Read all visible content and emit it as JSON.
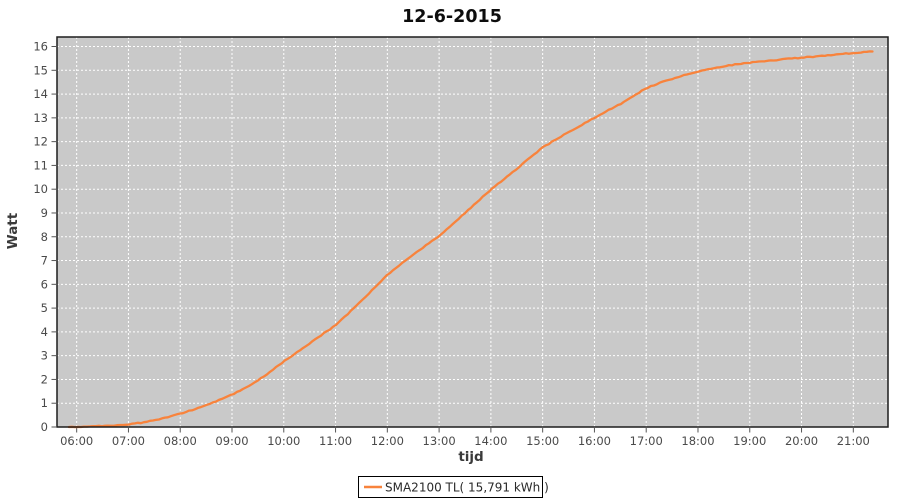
{
  "chart_data": {
    "type": "line",
    "title": "12-6-2015",
    "xlabel": "tijd",
    "ylabel": "Watt",
    "x_tick_labels": [
      "06:00",
      "07:00",
      "08:00",
      "09:00",
      "10:00",
      "11:00",
      "12:00",
      "13:00",
      "14:00",
      "15:00",
      "16:00",
      "17:00",
      "18:00",
      "19:00",
      "20:00",
      "21:00"
    ],
    "x_tick_hours": [
      6,
      7,
      8,
      9,
      10,
      11,
      12,
      13,
      14,
      15,
      16,
      17,
      18,
      19,
      20,
      21
    ],
    "xlim_hours": [
      5.62,
      21.67
    ],
    "y_ticks": [
      0,
      1,
      2,
      3,
      4,
      5,
      6,
      7,
      8,
      9,
      10,
      11,
      12,
      13,
      14,
      15,
      16
    ],
    "ylim": [
      0,
      16.4
    ],
    "grid": true,
    "legend_position": "bottom",
    "legend_label": "SMA2100 TL( 15,791 kWh )",
    "colors": {
      "series": "#F8833C",
      "plot_bg": "#C9C9C9",
      "gridline": "#FFFFFF",
      "border": "#1d1d1d",
      "tick_mark": "#555555",
      "tick_text": "#4A4A4A",
      "legend_border": "#000000",
      "legend_bg": "#FFFFFF"
    },
    "series": [
      {
        "name": "SMA2100 TL( 15,791 kWh )",
        "color": "#F8833C",
        "points_hour_kwh": [
          [
            5.85,
            0.0
          ],
          [
            6.0,
            0.01
          ],
          [
            6.25,
            0.02
          ],
          [
            6.5,
            0.04
          ],
          [
            6.75,
            0.07
          ],
          [
            7.0,
            0.11
          ],
          [
            7.25,
            0.18
          ],
          [
            7.5,
            0.28
          ],
          [
            7.75,
            0.41
          ],
          [
            8.0,
            0.55
          ],
          [
            8.25,
            0.73
          ],
          [
            8.5,
            0.92
          ],
          [
            8.75,
            1.13
          ],
          [
            9.0,
            1.36
          ],
          [
            9.25,
            1.64
          ],
          [
            9.5,
            1.96
          ],
          [
            9.75,
            2.34
          ],
          [
            10.0,
            2.75
          ],
          [
            10.25,
            3.14
          ],
          [
            10.5,
            3.52
          ],
          [
            10.75,
            3.9
          ],
          [
            11.0,
            4.28
          ],
          [
            11.25,
            4.78
          ],
          [
            11.5,
            5.3
          ],
          [
            11.75,
            5.85
          ],
          [
            12.0,
            6.4
          ],
          [
            12.25,
            6.83
          ],
          [
            12.5,
            7.25
          ],
          [
            12.75,
            7.64
          ],
          [
            13.0,
            8.02
          ],
          [
            13.25,
            8.5
          ],
          [
            13.5,
            9.0
          ],
          [
            13.75,
            9.5
          ],
          [
            14.0,
            9.97
          ],
          [
            14.25,
            10.42
          ],
          [
            14.5,
            10.86
          ],
          [
            14.75,
            11.31
          ],
          [
            15.0,
            11.75
          ],
          [
            15.25,
            12.08
          ],
          [
            15.5,
            12.4
          ],
          [
            15.75,
            12.7
          ],
          [
            16.0,
            13.0
          ],
          [
            16.25,
            13.3
          ],
          [
            16.5,
            13.58
          ],
          [
            16.75,
            13.92
          ],
          [
            17.0,
            14.25
          ],
          [
            17.25,
            14.46
          ],
          [
            17.5,
            14.64
          ],
          [
            17.75,
            14.8
          ],
          [
            18.0,
            14.95
          ],
          [
            18.25,
            15.07
          ],
          [
            18.5,
            15.17
          ],
          [
            18.75,
            15.25
          ],
          [
            19.0,
            15.32
          ],
          [
            19.25,
            15.38
          ],
          [
            19.5,
            15.43
          ],
          [
            19.75,
            15.48
          ],
          [
            20.0,
            15.53
          ],
          [
            20.25,
            15.58
          ],
          [
            20.5,
            15.63
          ],
          [
            20.75,
            15.68
          ],
          [
            21.0,
            15.72
          ],
          [
            21.2,
            15.76
          ],
          [
            21.37,
            15.79
          ]
        ]
      }
    ]
  }
}
